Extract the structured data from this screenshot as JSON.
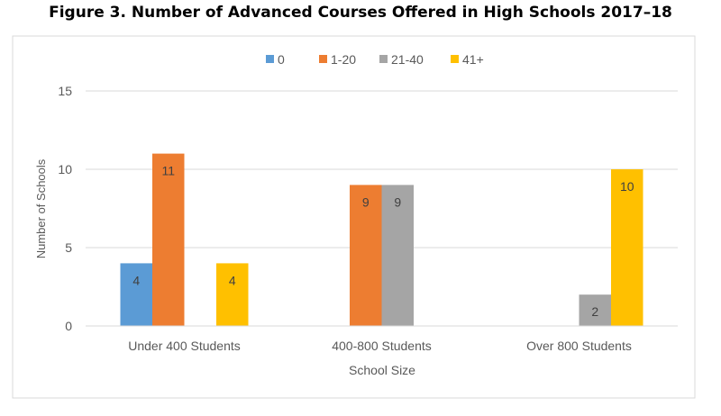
{
  "chart_data": {
    "type": "bar",
    "title": "Figure 3. Number of Advanced Courses Offered in High Schools 2017–18",
    "xlabel": "School Size",
    "ylabel": "Number of Schools",
    "categories": [
      "Under 400 Students",
      "400-800 Students",
      "Over 800 Students"
    ],
    "series": [
      {
        "name": "0",
        "color": "#5B9BD5",
        "values": [
          4,
          null,
          null
        ]
      },
      {
        "name": "1-20",
        "color": "#ED7D31",
        "values": [
          11,
          9,
          null
        ]
      },
      {
        "name": "21-40",
        "color": "#A5A5A5",
        "values": [
          null,
          9,
          2
        ]
      },
      {
        "name": "41+",
        "color": "#FFC000",
        "values": [
          4,
          null,
          10
        ]
      }
    ],
    "ylim": [
      0,
      15
    ],
    "yticks": [
      0,
      5,
      10,
      15
    ],
    "grid": true,
    "legend": "top",
    "data_labels": true
  }
}
